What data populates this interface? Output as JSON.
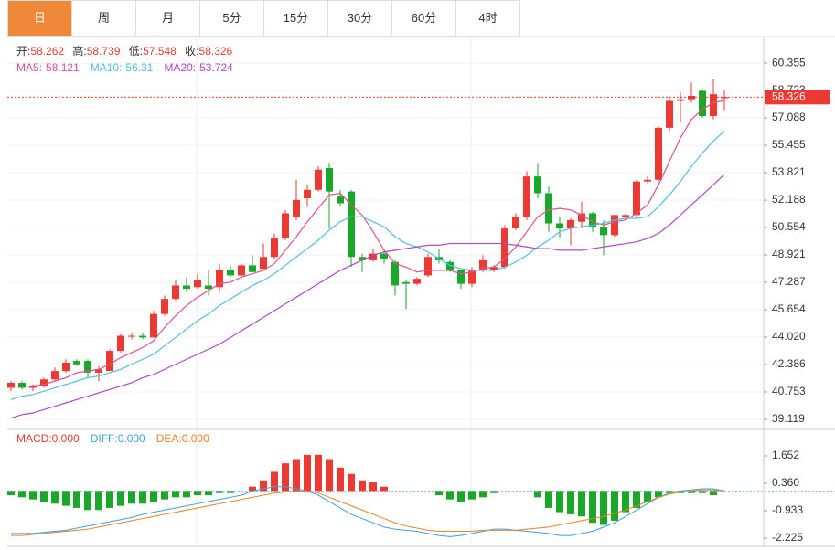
{
  "tabs": [
    "日",
    "周",
    "月",
    "5分",
    "15分",
    "30分",
    "60分",
    "4时"
  ],
  "selected_tab": 0,
  "chart_data": [
    {
      "type": "candlestick",
      "ohlc_labels": [
        "开:",
        "高:",
        "低:",
        "收:"
      ],
      "up_color": "#eb3a32",
      "down_color": "#1aa829",
      "open": [
        41.0,
        41.3,
        41.0,
        41.1,
        41.5,
        42.0,
        42.6,
        42.6,
        41.9,
        42.0,
        43.2,
        44.1,
        44.1,
        44.0,
        45.4,
        46.3,
        47.1,
        47.0,
        47.1,
        47.0,
        48.0,
        47.7,
        48.3,
        48.1,
        48.8,
        49.9,
        51.2,
        52.3,
        52.8,
        54.1,
        52.4,
        52.7,
        48.8,
        48.6,
        49.0,
        48.5,
        47.3,
        47.2,
        47.7,
        48.8,
        48.5,
        48.0,
        47.2,
        48.0,
        48.0,
        48.2,
        50.5,
        51.2,
        53.6,
        52.6,
        50.8,
        50.5,
        50.9,
        51.4,
        50.6,
        50.1,
        51.2,
        51.3,
        53.3,
        53.4,
        56.5,
        58.1,
        58.2,
        58.7,
        57.2,
        58.262
      ],
      "high": [
        41.4,
        41.4,
        41.2,
        41.6,
        42.2,
        42.7,
        42.7,
        42.7,
        42.3,
        43.3,
        44.2,
        44.3,
        44.3,
        45.6,
        46.5,
        47.4,
        47.6,
        47.8,
        48.0,
        48.4,
        48.3,
        48.4,
        48.9,
        49.6,
        50.2,
        51.6,
        53.4,
        53.1,
        54.2,
        54.4,
        52.8,
        52.8,
        49.0,
        49.3,
        49.3,
        48.6,
        47.4,
        47.6,
        49.0,
        49.3,
        48.6,
        48.0,
        48.2,
        48.9,
        48.3,
        50.7,
        51.4,
        53.9,
        54.4,
        53.0,
        51.2,
        51.1,
        52.1,
        51.5,
        51.0,
        51.3,
        51.4,
        53.4,
        53.6,
        56.6,
        58.3,
        58.6,
        59.2,
        58.8,
        59.4,
        58.739
      ],
      "low": [
        40.8,
        40.9,
        40.8,
        41.0,
        41.4,
        41.9,
        42.3,
        41.6,
        41.4,
        42.0,
        43.1,
        43.9,
        43.9,
        44.0,
        45.3,
        46.2,
        46.7,
        46.9,
        46.5,
        46.7,
        47.6,
        47.6,
        47.9,
        48.0,
        48.7,
        49.8,
        51.0,
        51.8,
        52.7,
        50.5,
        51.8,
        48.2,
        47.9,
        48.5,
        48.4,
        46.5,
        45.7,
        47.1,
        47.6,
        48.4,
        47.9,
        46.9,
        47.0,
        47.9,
        47.9,
        48.1,
        50.4,
        51.0,
        52.3,
        50.3,
        49.9,
        49.5,
        50.5,
        50.3,
        48.9,
        50.0,
        51.0,
        51.2,
        53.2,
        53.3,
        56.3,
        56.8,
        58.0,
        57.1,
        57.0,
        57.548
      ],
      "close": [
        41.3,
        41.0,
        41.1,
        41.5,
        42.0,
        42.5,
        42.4,
        41.9,
        42.1,
        43.2,
        44.1,
        44.1,
        44.0,
        45.4,
        46.3,
        47.1,
        46.9,
        47.4,
        46.9,
        48.0,
        47.7,
        48.3,
        47.9,
        48.8,
        49.9,
        51.4,
        52.2,
        52.8,
        54.0,
        52.7,
        52.0,
        48.8,
        48.6,
        49.0,
        48.7,
        47.1,
        47.2,
        47.5,
        48.8,
        48.6,
        48.0,
        47.2,
        48.0,
        48.6,
        48.2,
        50.5,
        51.2,
        53.6,
        52.6,
        50.8,
        50.5,
        51.0,
        51.4,
        50.6,
        50.1,
        51.3,
        51.3,
        53.3,
        53.4,
        56.5,
        58.1,
        58.2,
        58.4,
        57.2,
        58.5,
        58.326
      ],
      "series": [
        {
          "name": "MA5:",
          "color": "#e0508c",
          "values": [
            41.1,
            41.1,
            41.1,
            41.2,
            41.4,
            41.6,
            41.9,
            42.0,
            42.1,
            42.4,
            42.8,
            43.1,
            43.4,
            43.8,
            44.6,
            45.3,
            45.9,
            46.4,
            46.8,
            47.2,
            47.3,
            47.6,
            47.8,
            48.0,
            48.4,
            49.2,
            50.0,
            50.9,
            51.7,
            52.5,
            52.6,
            51.9,
            51.3,
            50.3,
            49.2,
            48.4,
            48.2,
            47.9,
            48.0,
            48.0,
            48.0,
            47.8,
            47.9,
            48.1,
            48.2,
            48.7,
            49.4,
            50.3,
            51.2,
            51.6,
            51.7,
            51.6,
            51.3,
            50.9,
            50.7,
            50.9,
            51.0,
            51.4,
            51.9,
            53.1,
            54.5,
            55.9,
            57.0,
            57.6,
            58.0,
            58.121
          ]
        },
        {
          "name": "MA10:",
          "color": "#4fc1e0",
          "values": [
            40.3,
            40.5,
            40.6,
            40.8,
            41.0,
            41.2,
            41.4,
            41.6,
            41.7,
            41.9,
            42.1,
            42.4,
            42.7,
            43.0,
            43.5,
            44.0,
            44.5,
            45.0,
            45.4,
            45.9,
            46.3,
            46.7,
            47.1,
            47.4,
            47.8,
            48.3,
            48.8,
            49.3,
            49.8,
            50.4,
            50.9,
            51.2,
            51.2,
            50.9,
            50.6,
            50.0,
            49.6,
            49.4,
            49.1,
            48.7,
            48.3,
            48.1,
            48.0,
            48.0,
            48.0,
            48.2,
            48.5,
            48.9,
            49.4,
            49.8,
            50.3,
            50.5,
            50.6,
            50.7,
            50.8,
            51.0,
            51.1,
            51.1,
            51.2,
            51.8,
            52.5,
            53.3,
            54.2,
            55.0,
            55.7,
            56.31
          ]
        },
        {
          "name": "MA20:",
          "color": "#b048c8",
          "values": [
            39.2,
            39.4,
            39.5,
            39.7,
            39.9,
            40.1,
            40.3,
            40.5,
            40.7,
            40.9,
            41.1,
            41.3,
            41.6,
            41.8,
            42.1,
            42.4,
            42.7,
            43.0,
            43.3,
            43.6,
            44.0,
            44.4,
            44.8,
            45.2,
            45.6,
            46.0,
            46.4,
            46.8,
            47.2,
            47.6,
            48.0,
            48.3,
            48.6,
            48.9,
            49.1,
            49.2,
            49.3,
            49.4,
            49.5,
            49.5,
            49.6,
            49.6,
            49.6,
            49.6,
            49.6,
            49.6,
            49.5,
            49.4,
            49.3,
            49.3,
            49.2,
            49.2,
            49.2,
            49.3,
            49.4,
            49.5,
            49.6,
            49.7,
            49.9,
            50.2,
            50.7,
            51.3,
            51.9,
            52.5,
            53.1,
            53.724
          ]
        }
      ],
      "ylim": [
        38.52,
        61.83
      ],
      "yticks": [
        60.355,
        58.723,
        57.088,
        55.455,
        53.821,
        52.188,
        50.554,
        48.921,
        47.287,
        45.654,
        {
          "value": 44.02,
          "label": "44.020"
        },
        42.386,
        40.753,
        39.119
      ],
      "grid": true
    },
    {
      "type": "macd",
      "series": [
        {
          "name": "MACD:",
          "kind": "bar",
          "color": "#eb3a32",
          "negative_color": "#1aa829",
          "latest_label": "0.000",
          "values": [
            -0.2,
            -0.3,
            -0.4,
            -0.5,
            -0.6,
            -0.7,
            -0.8,
            -0.9,
            -0.9,
            -0.8,
            -0.7,
            -0.6,
            -0.6,
            -0.5,
            -0.4,
            -0.3,
            -0.3,
            -0.2,
            -0.2,
            -0.1,
            -0.1,
            0.0,
            0.2,
            0.5,
            0.9,
            1.3,
            1.5,
            1.7,
            1.7,
            1.5,
            1.1,
            0.8,
            0.5,
            0.4,
            0.2,
            0.0,
            0.0,
            0.0,
            0.0,
            -0.2,
            -0.4,
            -0.5,
            -0.4,
            -0.3,
            -0.1,
            0.0,
            0.0,
            0.0,
            -0.3,
            -0.8,
            -1.0,
            -1.1,
            -1.2,
            -1.5,
            -1.6,
            -1.4,
            -1.0,
            -0.8,
            -0.5,
            -0.3,
            -0.1,
            -0.1,
            -0.1,
            -0.1,
            -0.2,
            0.0
          ]
        },
        {
          "name": "DIFF:",
          "kind": "line",
          "color": "#3aa0e8",
          "latest_label": "0.000",
          "values": [
            -2.0,
            -2.0,
            -2.0,
            -1.95,
            -1.9,
            -1.85,
            -1.75,
            -1.65,
            -1.55,
            -1.45,
            -1.35,
            -1.25,
            -1.1,
            -1.0,
            -0.9,
            -0.8,
            -0.7,
            -0.6,
            -0.5,
            -0.4,
            -0.3,
            -0.2,
            0.0,
            0.1,
            0.2,
            0.2,
            0.1,
            0.0,
            -0.2,
            -0.5,
            -0.8,
            -1.1,
            -1.3,
            -1.5,
            -1.7,
            -1.8,
            -1.85,
            -1.9,
            -2.0,
            -2.1,
            -2.15,
            -2.1,
            -2.0,
            -1.9,
            -1.8,
            -1.8,
            -1.85,
            -1.9,
            -1.95,
            -2.0,
            -2.1,
            -2.1,
            -2.0,
            -1.9,
            -1.7,
            -1.5,
            -1.2,
            -0.9,
            -0.6,
            -0.3,
            -0.1,
            0.0,
            0.05,
            0.1,
            0.1,
            0.0
          ]
        },
        {
          "name": "DEA:",
          "kind": "line",
          "color": "#f08020",
          "latest_label": "0.000",
          "values": [
            -2.1,
            -2.1,
            -2.05,
            -2.0,
            -1.95,
            -1.9,
            -1.85,
            -1.8,
            -1.7,
            -1.6,
            -1.5,
            -1.4,
            -1.3,
            -1.2,
            -1.1,
            -1.0,
            -0.9,
            -0.8,
            -0.7,
            -0.6,
            -0.5,
            -0.4,
            -0.3,
            -0.2,
            -0.1,
            -0.05,
            0.0,
            0.0,
            -0.1,
            -0.3,
            -0.5,
            -0.7,
            -0.9,
            -1.1,
            -1.3,
            -1.5,
            -1.65,
            -1.75,
            -1.85,
            -1.9,
            -1.9,
            -1.9,
            -1.9,
            -1.85,
            -1.85,
            -1.85,
            -1.85,
            -1.8,
            -1.75,
            -1.7,
            -1.6,
            -1.5,
            -1.4,
            -1.3,
            -1.2,
            -1.05,
            -0.9,
            -0.7,
            -0.5,
            -0.3,
            -0.15,
            -0.05,
            0.0,
            0.05,
            0.05,
            0.0
          ]
        }
      ],
      "ylim": [
        -2.61,
        2.9
      ],
      "yticks": [
        1.652,
        {
          "value": 0.36,
          "label": "0.360"
        },
        -0.933,
        -2.225
      ]
    }
  ]
}
